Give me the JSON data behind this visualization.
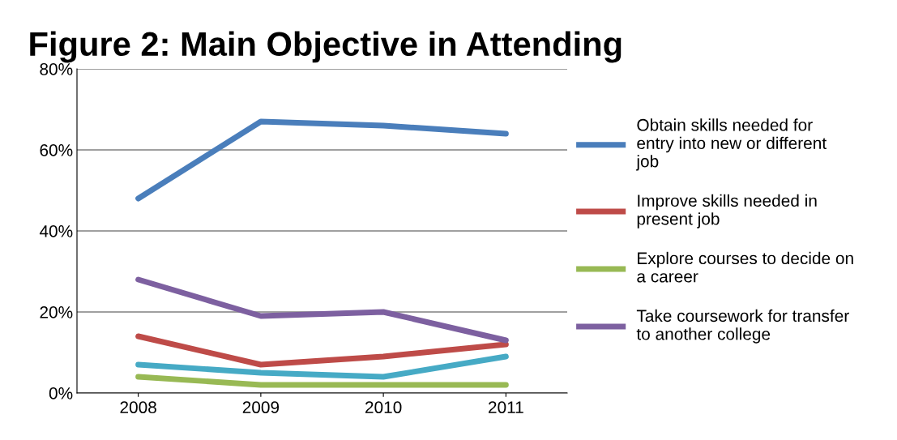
{
  "chart_data": {
    "type": "line",
    "title": "Figure 2: Main Objective in Attending",
    "categories": [
      "2008",
      "2009",
      "2010",
      "2011"
    ],
    "series": [
      {
        "name": "Obtain skills needed for entry into new or different job",
        "color": "#4a7ebb",
        "values": [
          48,
          67,
          66,
          64
        ]
      },
      {
        "name": "Improve skills needed in present job",
        "color": "#be4b48",
        "values": [
          14,
          7,
          9,
          12
        ]
      },
      {
        "name": "Explore courses to decide on a career",
        "color": "#98b954",
        "values": [
          4,
          2,
          2,
          2
        ]
      },
      {
        "name": "Take coursework for transfer to another college",
        "color": "#7d60a0",
        "values": [
          28,
          19,
          20,
          13
        ]
      },
      {
        "color": "#46aac5",
        "values": [
          7,
          5,
          4,
          9
        ]
      }
    ],
    "ylim": [
      0,
      80
    ],
    "yticks": [
      {
        "value": 0,
        "label": "0%"
      },
      {
        "value": 20,
        "label": "20%"
      },
      {
        "value": 40,
        "label": "40%"
      },
      {
        "value": 60,
        "label": "60%"
      },
      {
        "value": 80,
        "label": "80%"
      }
    ],
    "grid": "y",
    "legend": "right",
    "marker": "none",
    "line_style": "solid"
  }
}
